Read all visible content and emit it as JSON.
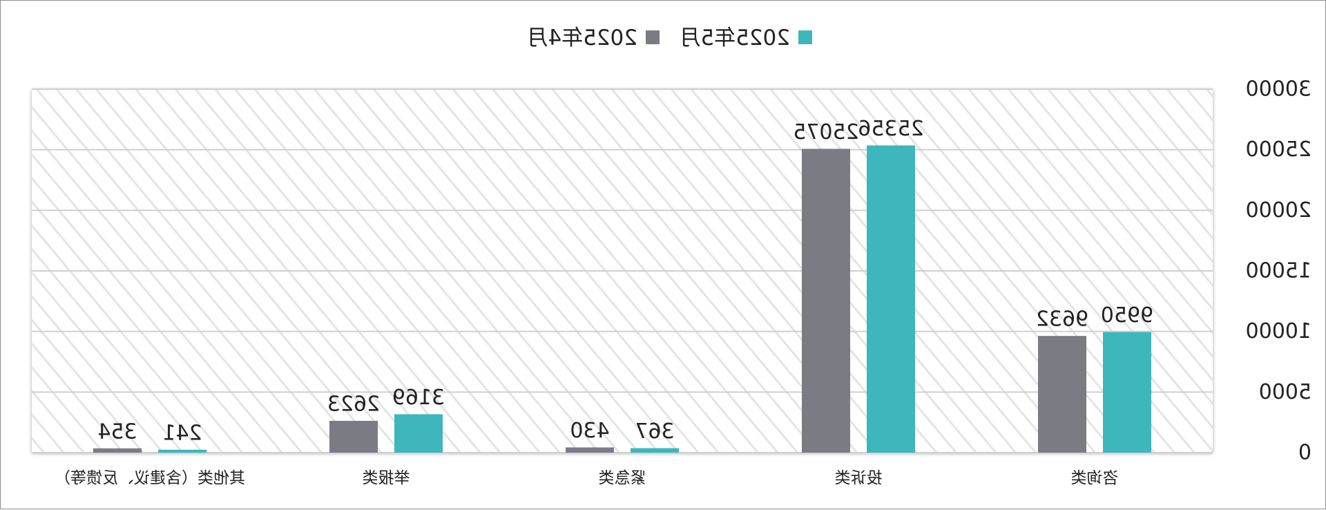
{
  "chart_data": {
    "type": "bar",
    "categories": [
      "其他类（含建议、反馈等）",
      "举报类",
      "紧急类",
      "投诉类",
      "咨询类"
    ],
    "series": [
      {
        "name": "2025年4月",
        "color": "#7b7b83",
        "values": [
          354,
          2623,
          430,
          25075,
          9632
        ]
      },
      {
        "name": "2025年5月",
        "color": "#3db6bc",
        "values": [
          241,
          3169,
          367,
          25356,
          9950
        ]
      }
    ],
    "data_labels": [
      [
        "354",
        "2623",
        "430",
        "25075",
        "9632"
      ],
      [
        "241",
        "3169",
        "367",
        "25356",
        "9950"
      ]
    ],
    "y_ticks": [
      {
        "value": 0,
        "label": "0"
      },
      {
        "value": 5000,
        "label": "5000"
      },
      {
        "value": 10000,
        "label": "10000"
      },
      {
        "value": 15000,
        "label": "15000"
      },
      {
        "value": 20000,
        "label": "20000"
      },
      {
        "value": 25000,
        "label": "25000"
      },
      {
        "value": 30000,
        "label": "30000"
      }
    ],
    "ylim": [
      0,
      30000
    ],
    "title": "",
    "xlabel": "",
    "ylabel": "",
    "grid": true,
    "legend_position": "top-center",
    "orientation_note": "mirrored"
  }
}
